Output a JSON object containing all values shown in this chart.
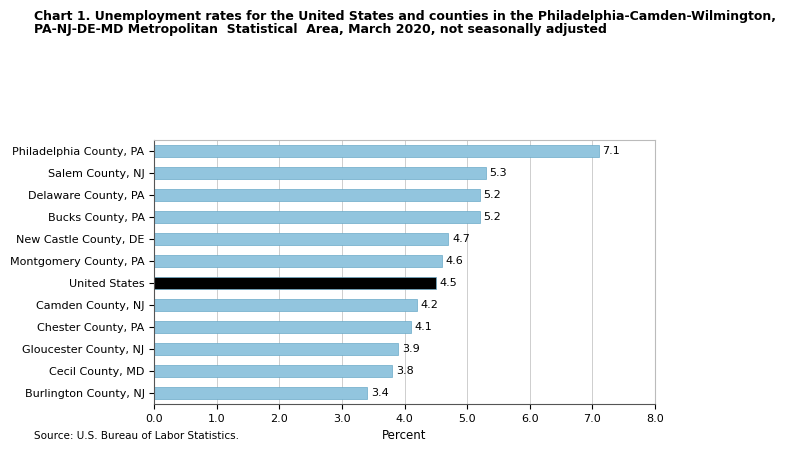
{
  "title_line1": "Chart 1. Unemployment rates for the United States and counties in the Philadelphia-Camden-Wilmington,",
  "title_line2": "PA-NJ-DE-MD Metropolitan  Statistical  Area, March 2020, not seasonally adjusted",
  "categories": [
    "Philadelphia County, PA",
    "Salem County, NJ",
    "Delaware County, PA",
    "Bucks County, PA",
    "New Castle County, DE",
    "Montgomery County, PA",
    "United States",
    "Camden County, NJ",
    "Chester County, PA",
    "Gloucester County, NJ",
    "Cecil County, MD",
    "Burlington County, NJ"
  ],
  "values": [
    7.1,
    5.3,
    5.2,
    5.2,
    4.7,
    4.6,
    4.5,
    4.2,
    4.1,
    3.9,
    3.8,
    3.4
  ],
  "bar_colors": [
    "#92C5DE",
    "#92C5DE",
    "#92C5DE",
    "#92C5DE",
    "#92C5DE",
    "#92C5DE",
    "#000000",
    "#92C5DE",
    "#92C5DE",
    "#92C5DE",
    "#92C5DE",
    "#92C5DE"
  ],
  "xlim": [
    0,
    8.0
  ],
  "xticks": [
    0.0,
    1.0,
    2.0,
    3.0,
    4.0,
    5.0,
    6.0,
    7.0,
    8.0
  ],
  "xlabel": "Percent",
  "source": "Source: U.S. Bureau of Labor Statistics.",
  "grid_color": "#bbbbbb",
  "bar_edge_color": "#6aaac8",
  "bg_color": "#ffffff",
  "label_fontsize": 8,
  "value_fontsize": 8,
  "title_fontsize": 9,
  "xlabel_fontsize": 8.5,
  "source_fontsize": 7.5,
  "bar_height": 0.55
}
